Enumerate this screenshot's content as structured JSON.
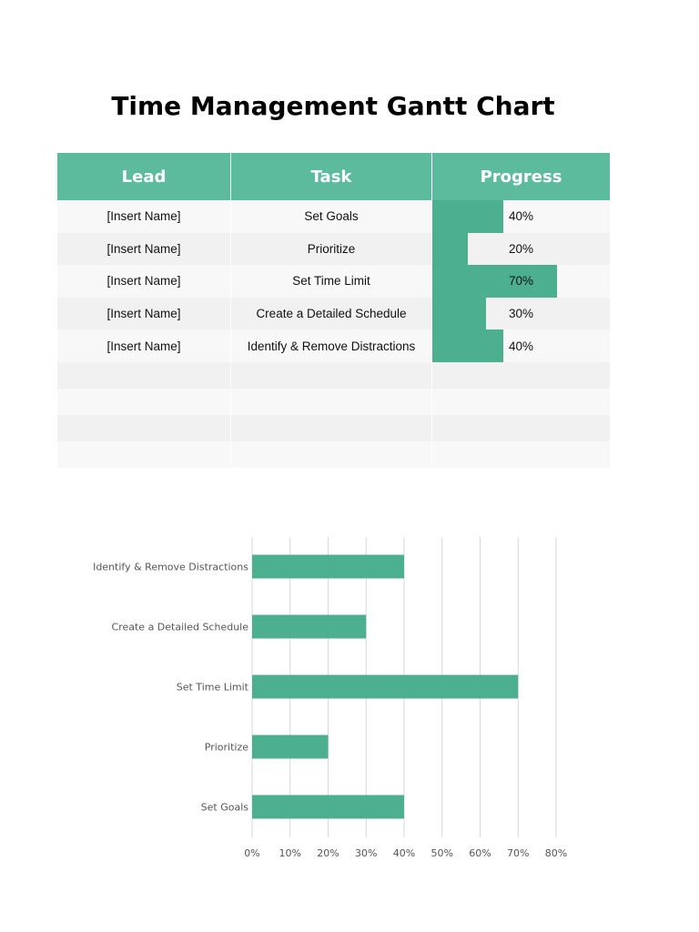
{
  "title": "Time Management Gantt Chart",
  "table": {
    "headers": [
      "Lead",
      "Task",
      "Progress"
    ],
    "rows": [
      {
        "lead": "[Insert Name]",
        "task": "Set Goals",
        "progress": 40,
        "progress_label": "40%"
      },
      {
        "lead": "[Insert Name]",
        "task": "Prioritize",
        "progress": 20,
        "progress_label": "20%"
      },
      {
        "lead": "[Insert Name]",
        "task": "Set Time Limit",
        "progress": 70,
        "progress_label": "70%"
      },
      {
        "lead": "[Insert Name]",
        "task": "Create a Detailed Schedule",
        "progress": 30,
        "progress_label": "30%"
      },
      {
        "lead": "[Insert Name]",
        "task": "Identify & Remove Distractions",
        "progress": 40,
        "progress_label": "40%"
      }
    ],
    "empty_rows": 4
  },
  "colors": {
    "header": "#5bbb9c",
    "bar": "#4caf8f",
    "row_light": "#f8f8f8",
    "row_dark": "#f1f1f1"
  },
  "chart_data": {
    "type": "bar",
    "orientation": "horizontal",
    "categories": [
      "Identify & Remove Distractions",
      "Create a Detailed Schedule",
      "Set Time Limit",
      "Prioritize",
      "Set Goals"
    ],
    "values": [
      40,
      30,
      70,
      20,
      40
    ],
    "xlim": [
      0,
      80
    ],
    "xticks": [
      "0%",
      "10%",
      "20%",
      "30%",
      "40%",
      "50%",
      "60%",
      "70%",
      "80%"
    ],
    "grid": true,
    "legend": "none"
  }
}
